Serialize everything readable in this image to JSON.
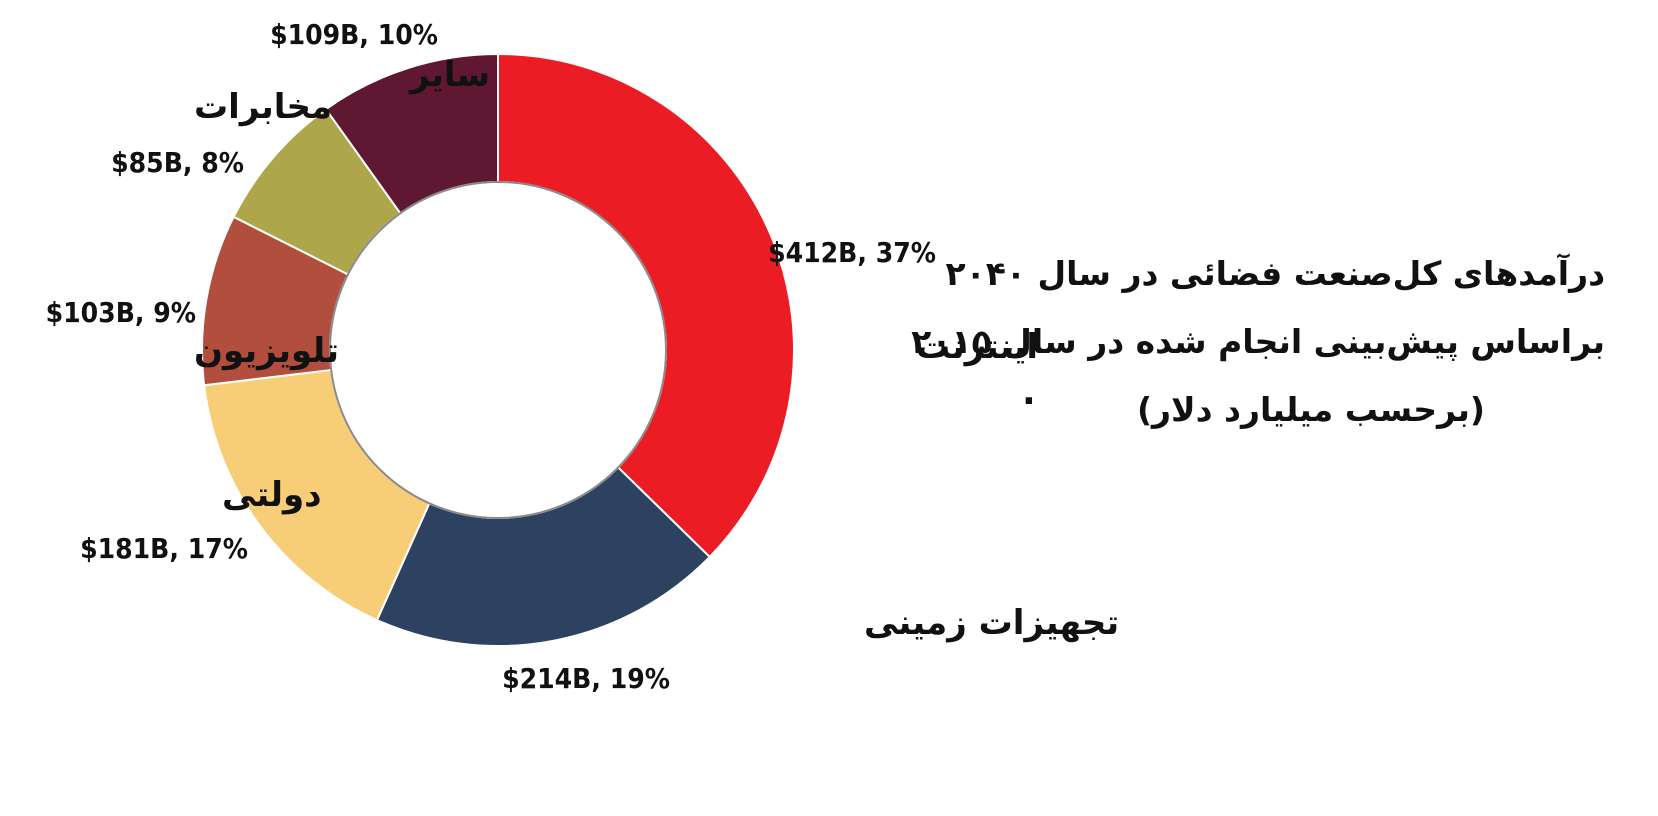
{
  "chart_data": {
    "type": "donut",
    "title": [
      "درآمدهای  کل‌صنعت فضائی در سال ۲۰۴۰",
      "براساس پیش‌بینی انجام شده در سال ۲۰۱۵",
      "(برحسب میلیارد دلار)"
    ],
    "title_trailing": ".",
    "slices": [
      {
        "name": "اینترنت",
        "value": 412,
        "label": "$412B, 37%",
        "color": "#ec1c24"
      },
      {
        "name": "تجهیزات زمینی",
        "value": 214,
        "label": "$214B, 19%",
        "color": "#2d4260"
      },
      {
        "name": "دولتی",
        "value": 181,
        "label": "$181B, 17%",
        "color": "#f8cd78"
      },
      {
        "name": "تلویزیون",
        "value": 103,
        "label": "$103B, 9%",
        "color": "#b14e3e"
      },
      {
        "name": "مخابرات",
        "value": 85,
        "label": "$85B, 8%",
        "color": "#ada64b"
      },
      {
        "name": "سایر",
        "value": 109,
        "label": "$109B, 10%",
        "color": "#5f1732"
      }
    ]
  }
}
